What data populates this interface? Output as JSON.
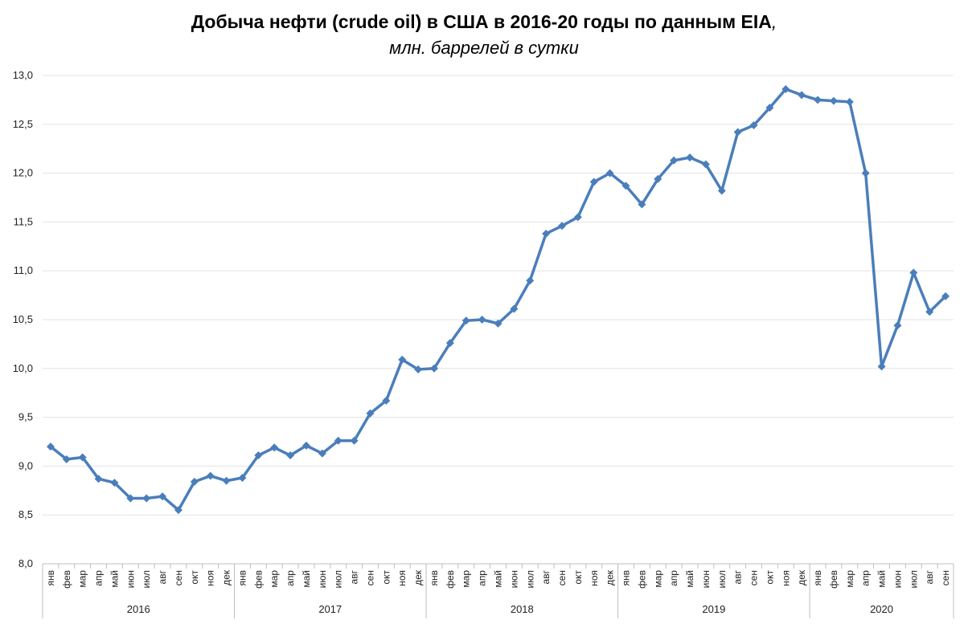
{
  "chart_data": {
    "type": "line",
    "title": "Добыча нефти (crude oil) в США в 2016-20 годы по данным EIA",
    "title_suffix": ",",
    "subtitle": "млн. баррелей в сутки",
    "xlabel": "",
    "ylabel": "",
    "ylim": [
      8.0,
      13.0
    ],
    "yticks": [
      "8,0",
      "8,5",
      "9,0",
      "9,5",
      "10,0",
      "10,5",
      "11,0",
      "11,5",
      "12,0",
      "12,5",
      "13,0"
    ],
    "grid": "horizontal",
    "legend": "none",
    "color": "#4a7ebb",
    "years": [
      {
        "label": "2016",
        "months": 12
      },
      {
        "label": "2017",
        "months": 12
      },
      {
        "label": "2018",
        "months": 12
      },
      {
        "label": "2019",
        "months": 12
      },
      {
        "label": "2020",
        "months": 9
      }
    ],
    "categories": [
      "янв",
      "фев",
      "мар",
      "апр",
      "май",
      "июн",
      "июл",
      "авг",
      "сен",
      "окт",
      "ноя",
      "дек",
      "янв",
      "фев",
      "мар",
      "апр",
      "май",
      "июн",
      "июл",
      "авг",
      "сен",
      "окт",
      "ноя",
      "дек",
      "янв",
      "фев",
      "мар",
      "апр",
      "май",
      "июн",
      "июл",
      "авг",
      "сен",
      "окт",
      "ноя",
      "дек",
      "янв",
      "фев",
      "мар",
      "апр",
      "май",
      "июн",
      "июл",
      "авг",
      "сен",
      "окт",
      "ноя",
      "дек",
      "янв",
      "фев",
      "мар",
      "апр",
      "май",
      "июн",
      "июл",
      "авг",
      "сен"
    ],
    "series": [
      {
        "values": [
          9.2,
          9.07,
          9.09,
          8.87,
          8.83,
          8.67,
          8.67,
          8.69,
          8.55,
          8.84,
          8.9,
          8.85,
          8.88,
          9.11,
          9.19,
          9.11,
          9.21,
          9.13,
          9.26,
          9.26,
          9.54,
          9.67,
          10.09,
          9.99,
          10.0,
          10.26,
          10.49,
          10.5,
          10.46,
          10.61,
          10.9,
          11.38,
          11.46,
          11.55,
          11.91,
          12.0,
          11.87,
          11.68,
          11.94,
          12.13,
          12.16,
          12.09,
          11.82,
          12.42,
          12.49,
          12.67,
          12.86,
          12.8,
          12.75,
          12.74,
          12.73,
          12.0,
          10.02,
          10.44,
          10.98,
          10.58,
          10.74
        ]
      }
    ]
  }
}
